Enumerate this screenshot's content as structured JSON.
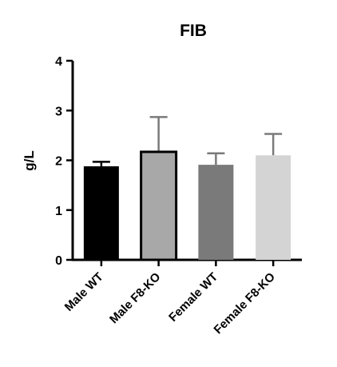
{
  "chart_data": {
    "type": "bar",
    "title": "FIB",
    "xlabel": "",
    "ylabel": "g/L",
    "ylim": [
      0,
      4
    ],
    "yticks": [
      "0",
      "1",
      "2",
      "3",
      "4"
    ],
    "grid": false,
    "categories": [
      "Male WT",
      "Male F8-KO",
      "Female WT",
      "Female F8-KO"
    ],
    "values": [
      1.88,
      2.17,
      1.91,
      2.1
    ],
    "error_upper": [
      1.97,
      2.87,
      2.14,
      2.53
    ],
    "bar_colors": [
      "#000000",
      "#a8a8a8",
      "#7a7a7a",
      "#d4d4d4"
    ],
    "axis_color": "#000000"
  }
}
